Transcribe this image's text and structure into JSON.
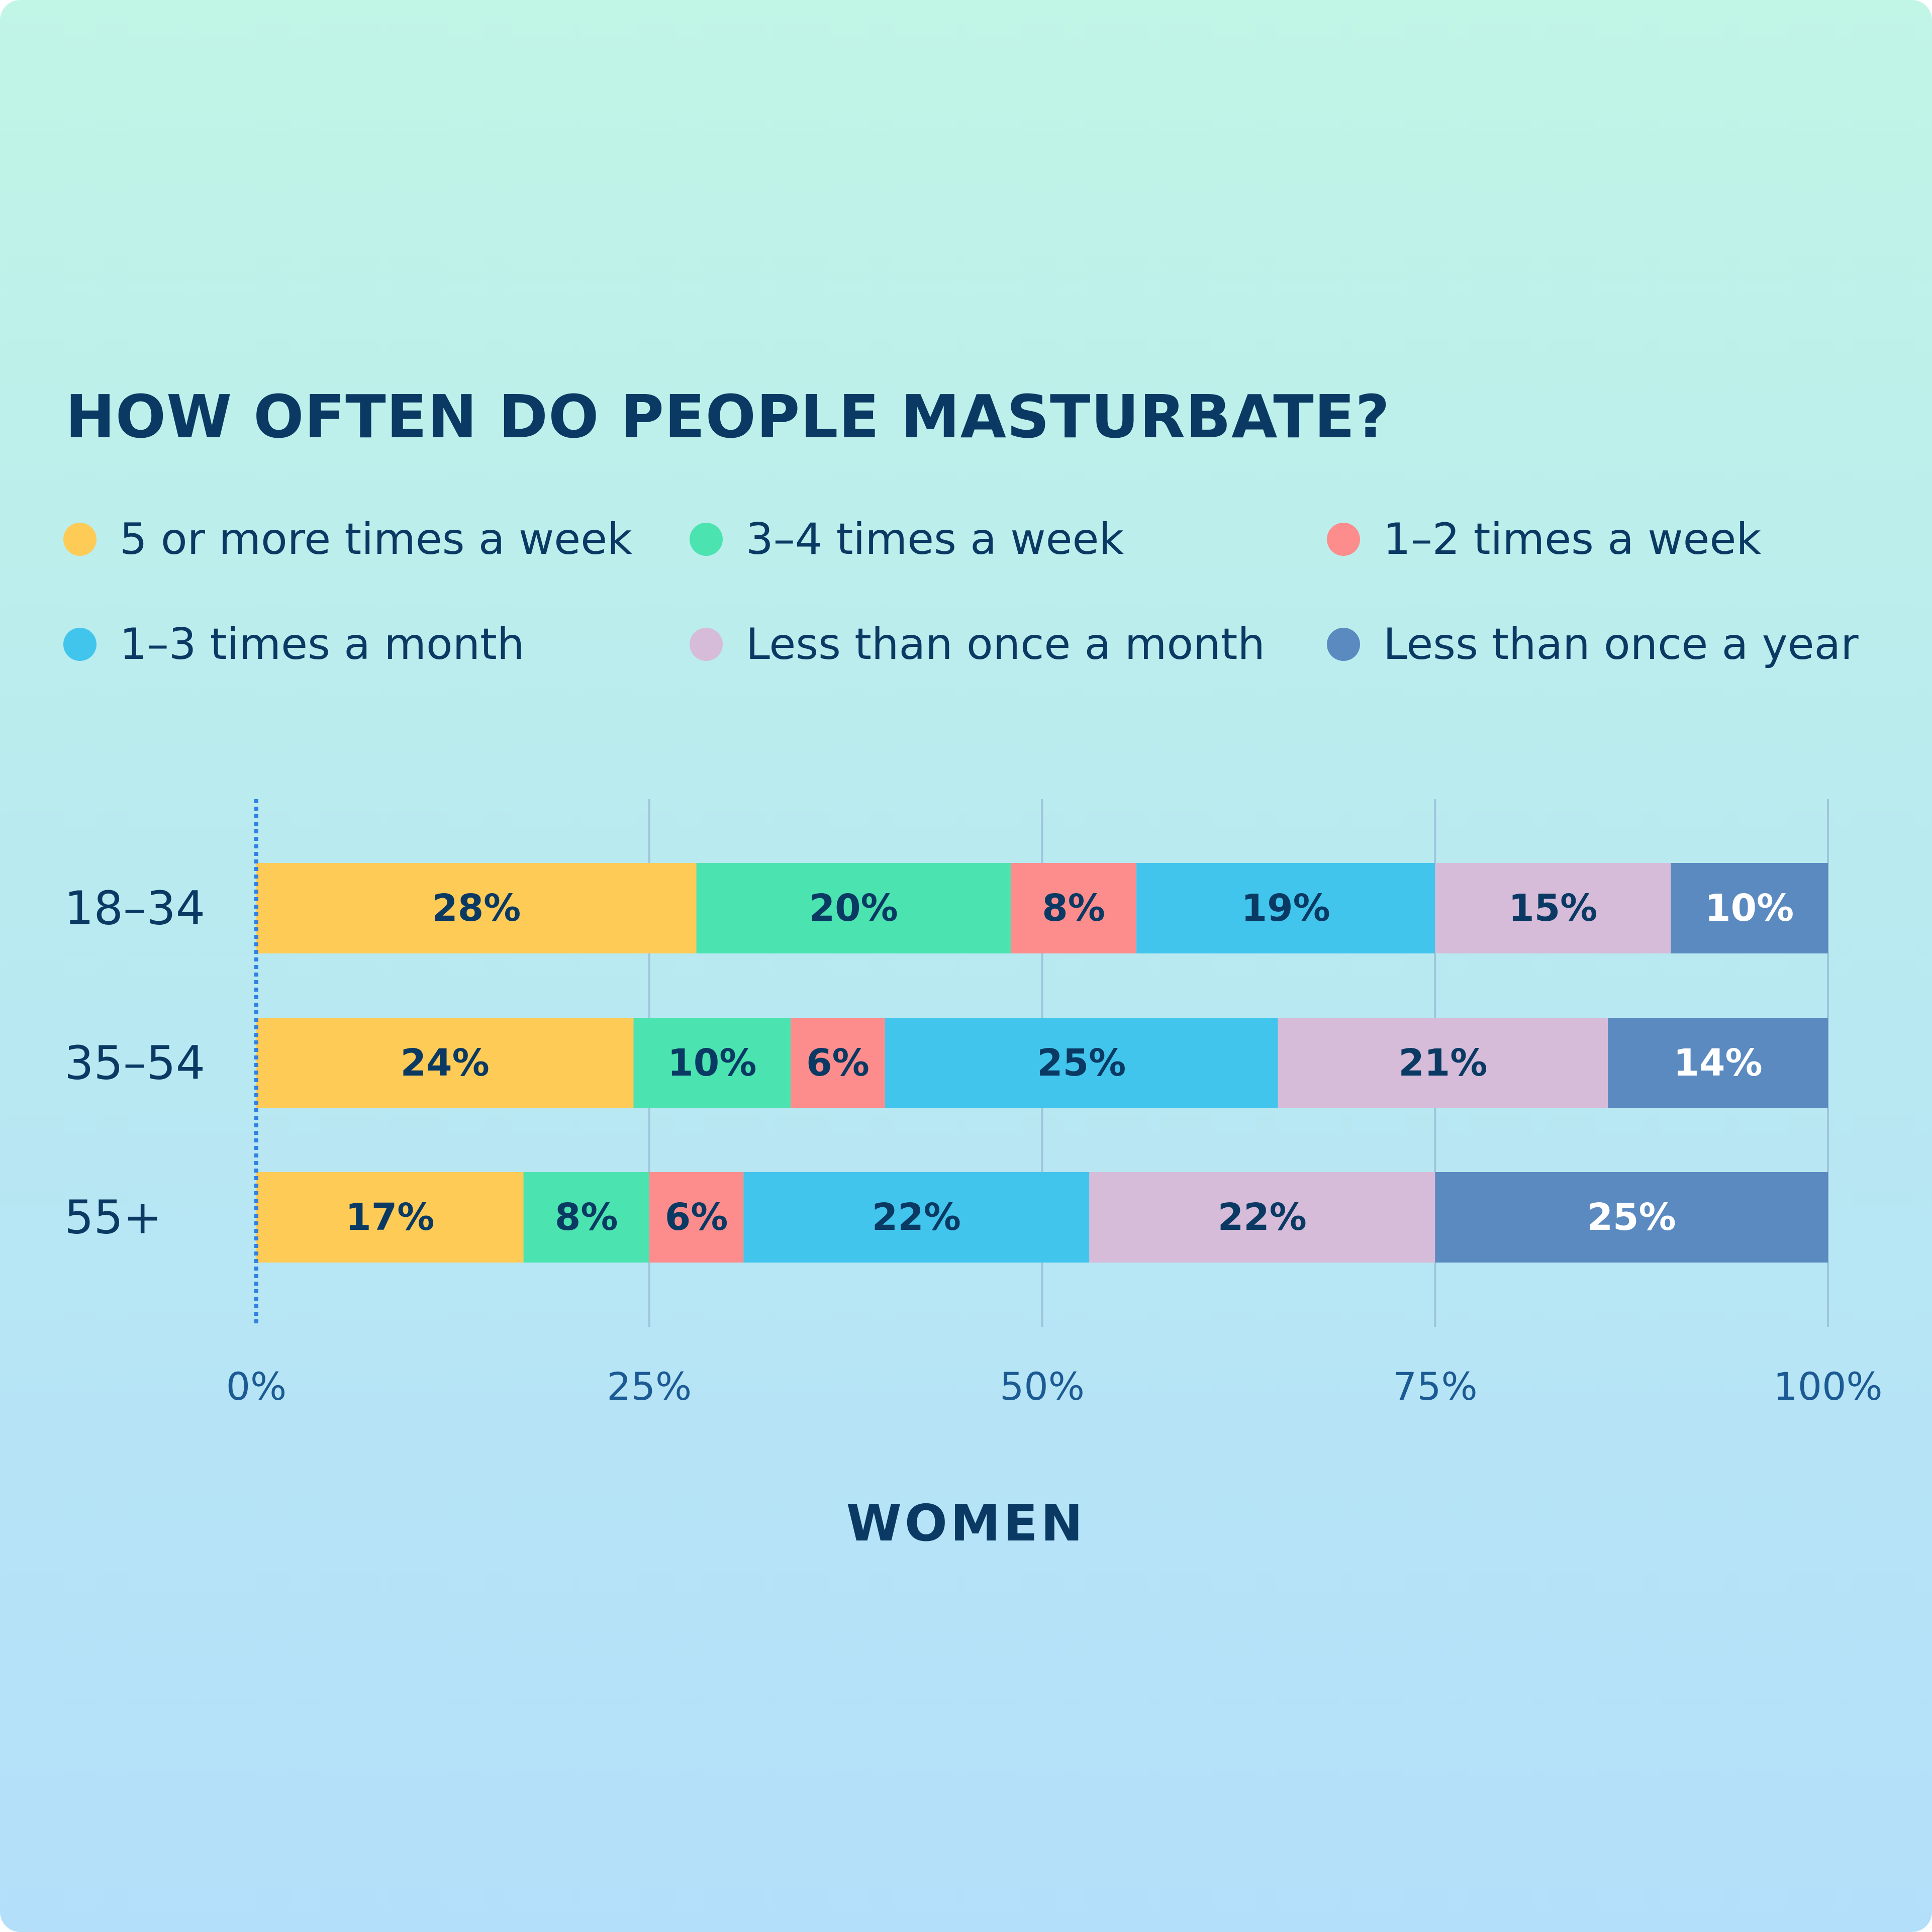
{
  "chart_data": {
    "type": "bar",
    "orientation": "horizontal",
    "stacked": true,
    "title": "HOW OFTEN DO PEOPLE MASTURBATE?",
    "xlabel": "WOMEN",
    "ylabel": "",
    "xlim": [
      0,
      100
    ],
    "x_ticks": [
      "0%",
      "25%",
      "50%",
      "75%",
      "100%"
    ],
    "grid": true,
    "legend_position": "top",
    "categories": [
      "18–34",
      "35–54",
      "55+"
    ],
    "series": [
      {
        "name": "5 or more times a week",
        "color": "#fecb56",
        "label_color": "#0a3a63",
        "values": [
          28,
          24,
          17
        ]
      },
      {
        "name": "3–4 times a week",
        "color": "#4be3b0",
        "label_color": "#0a3a63",
        "values": [
          20,
          10,
          8
        ]
      },
      {
        "name": "1–2 times a week",
        "color": "#fd8d8d",
        "label_color": "#0a3a63",
        "values": [
          8,
          6,
          6
        ]
      },
      {
        "name": "1–3 times a month",
        "color": "#42c5ec",
        "label_color": "#0a3a63",
        "values": [
          19,
          25,
          22
        ]
      },
      {
        "name": "Less than once a month",
        "color": "#d6bcd8",
        "label_color": "#0a3a63",
        "values": [
          15,
          21,
          22
        ]
      },
      {
        "name": "Less than once a year",
        "color": "#5a8ac0",
        "label_color": "#ffffff",
        "values": [
          10,
          14,
          25
        ]
      }
    ]
  }
}
